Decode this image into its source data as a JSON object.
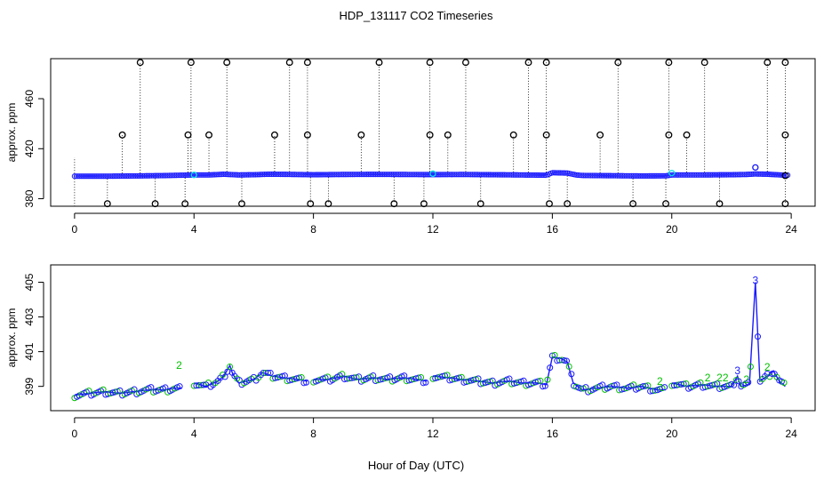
{
  "title": "HDP_131117  CO2 Timeseries",
  "xlabel": "Hour of Day (UTC)",
  "colors": {
    "axis": "#000000",
    "blue": "#1a1aff",
    "green": "#00c000",
    "cyan": "#00e5e5",
    "dotted": "#000000"
  },
  "chart_data": [
    {
      "type": "scatter",
      "panel": "top",
      "ylabel": "approx. ppm",
      "xlim": [
        -0.8,
        24.8
      ],
      "ylim": [
        374,
        492
      ],
      "xticks": [
        0,
        4,
        8,
        12,
        16,
        20,
        24
      ],
      "yticks": [
        380,
        420,
        460
      ],
      "baseline": [
        [
          0,
          398
        ],
        [
          1,
          398
        ],
        [
          2,
          398.2
        ],
        [
          3,
          398.5
        ],
        [
          4,
          399
        ],
        [
          4.5,
          399
        ],
        [
          5,
          399.6
        ],
        [
          5.5,
          399
        ],
        [
          6,
          399.2
        ],
        [
          6.5,
          399.6
        ],
        [
          7,
          399.5
        ],
        [
          8,
          399.2
        ],
        [
          9,
          399.4
        ],
        [
          10,
          399.5
        ],
        [
          11,
          399.4
        ],
        [
          12,
          399.3
        ],
        [
          13,
          399.4
        ],
        [
          14,
          399.2
        ],
        [
          15,
          399
        ],
        [
          15.8,
          398.8
        ],
        [
          16,
          400.8
        ],
        [
          16.5,
          400.5
        ],
        [
          16.8,
          399
        ],
        [
          17,
          398.6
        ],
        [
          18,
          398.4
        ],
        [
          19,
          398.2
        ],
        [
          19.8,
          398.3
        ],
        [
          20,
          399
        ],
        [
          21,
          399
        ],
        [
          22,
          399.2
        ],
        [
          22.5,
          399.4
        ],
        [
          22.8,
          399.8
        ],
        [
          23.2,
          399.6
        ],
        [
          23.8,
          398.8
        ]
      ],
      "spike_high": [
        2.2,
        3.9,
        5.1,
        7.2,
        7.8,
        10.2,
        11.9,
        13.1,
        15.2,
        15.8,
        18.2,
        19.9,
        21.1,
        23.2,
        23.8
      ],
      "spike_mid": [
        1.6,
        3.8,
        4.5,
        6.7,
        7.8,
        9.6,
        11.9,
        12.5,
        14.7,
        15.8,
        17.6,
        19.9,
        20.5,
        23.8
      ],
      "spike_low": [
        1.1,
        2.7,
        3.7,
        5.6,
        7.9,
        8.5,
        10.7,
        11.7,
        13.6,
        15.9,
        16.5,
        18.7,
        19.8,
        21.6,
        23.8
      ],
      "high_value": 489,
      "mid_value": 431,
      "low_value": 376,
      "cyan_points": [
        [
          4,
          399
        ],
        [
          12,
          400
        ],
        [
          20,
          400.5
        ]
      ],
      "extra_point": [
        22.8,
        405
      ]
    },
    {
      "type": "line",
      "panel": "bottom",
      "ylabel": "approx. ppm",
      "xlim": [
        -0.8,
        24.8
      ],
      "ylim": [
        397.6,
        406.0
      ],
      "xticks": [
        0,
        4,
        8,
        12,
        16,
        20,
        24
      ],
      "yticks": [
        399,
        401,
        403,
        405
      ],
      "segments": [
        [
          [
            0,
            398.5
          ],
          [
            0.5,
            398.6
          ],
          [
            1,
            398.7
          ],
          [
            1.5,
            398.6
          ],
          [
            2,
            398.7
          ],
          [
            2.5,
            398.8
          ],
          [
            3,
            398.8
          ],
          [
            3.4,
            398.9
          ],
          [
            3.6,
            398.9
          ]
        ],
        [
          [
            4,
            399.2
          ],
          [
            4.4,
            399
          ],
          [
            4.8,
            399.3
          ],
          [
            5,
            399.6
          ],
          [
            5.2,
            400.2
          ],
          [
            5.3,
            399.7
          ],
          [
            5.5,
            399.2
          ],
          [
            6,
            399.4
          ],
          [
            6.3,
            399.8
          ],
          [
            6.6,
            399.6
          ],
          [
            7,
            399.5
          ],
          [
            7.5,
            399.4
          ],
          [
            7.8,
            399.3
          ]
        ],
        [
          [
            8,
            399.4
          ],
          [
            8.5,
            399.4
          ],
          [
            9,
            399.6
          ],
          [
            9.5,
            399.4
          ],
          [
            10,
            399.5
          ],
          [
            10.5,
            399.4
          ],
          [
            11,
            399.5
          ],
          [
            11.5,
            399.4
          ],
          [
            11.8,
            399.3
          ]
        ],
        [
          [
            12,
            399.6
          ],
          [
            12.5,
            399.5
          ],
          [
            13,
            399.4
          ],
          [
            13.5,
            399.3
          ],
          [
            14,
            399.2
          ],
          [
            14.5,
            399.3
          ],
          [
            15,
            399.2
          ],
          [
            15.5,
            399.2
          ],
          [
            15.8,
            399.1
          ],
          [
            16,
            400.7
          ],
          [
            16.3,
            400.6
          ],
          [
            16.5,
            400.4
          ],
          [
            16.7,
            399.2
          ],
          [
            17,
            398.8
          ],
          [
            17.5,
            398.9
          ],
          [
            18,
            399
          ],
          [
            18.5,
            398.9
          ],
          [
            19,
            399
          ],
          [
            19.5,
            398.8
          ],
          [
            19.8,
            398.8
          ]
        ],
        [
          [
            20,
            399.2
          ],
          [
            20.5,
            399
          ],
          [
            21,
            399.1
          ],
          [
            21.5,
            399
          ],
          [
            22,
            399
          ],
          [
            22.2,
            399.6
          ],
          [
            22.3,
            399
          ],
          [
            22.6,
            399.1
          ],
          [
            22.8,
            405
          ],
          [
            22.95,
            399.3
          ],
          [
            23.2,
            399.6
          ],
          [
            23.4,
            399.9
          ],
          [
            23.6,
            399.3
          ],
          [
            23.8,
            399
          ]
        ]
      ],
      "labels_green": [
        [
          3.5,
          400.2,
          "2"
        ],
        [
          19.6,
          399.3,
          "2"
        ],
        [
          21.2,
          399.5,
          "2"
        ],
        [
          21.6,
          399.5,
          "2"
        ],
        [
          21.8,
          399.5,
          "2"
        ],
        [
          22.5,
          399.4,
          "2"
        ],
        [
          23.2,
          400.1,
          "2"
        ]
      ],
      "labels_blue": [
        [
          22.2,
          399.9,
          "3"
        ],
        [
          22.8,
          405.1,
          "3"
        ]
      ]
    }
  ]
}
